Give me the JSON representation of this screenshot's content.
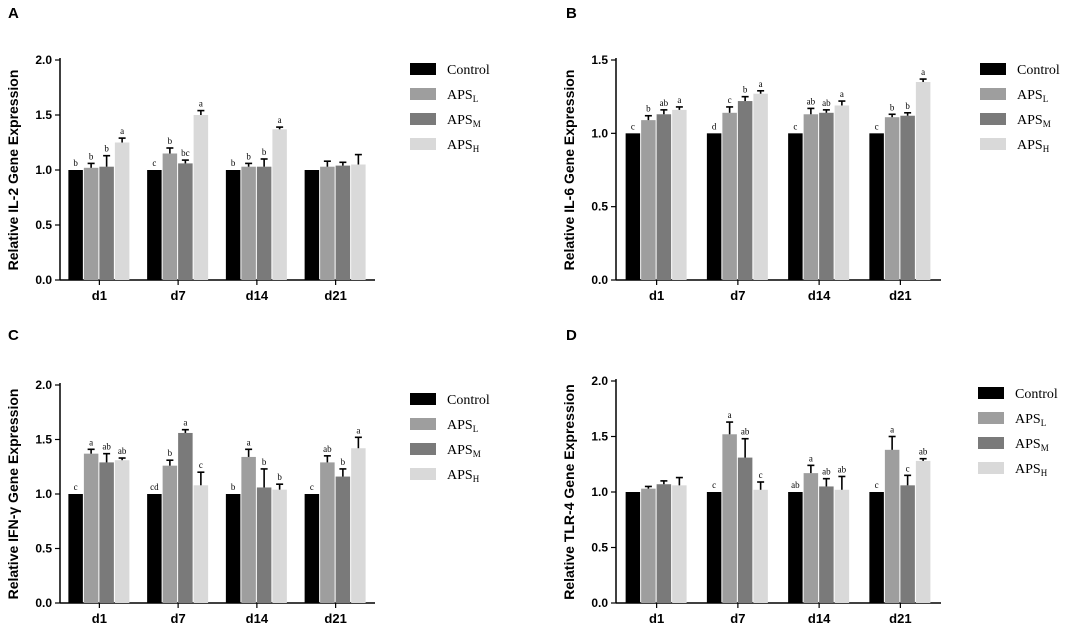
{
  "legend": [
    {
      "main": "Control",
      "sub": "",
      "color": "#000000"
    },
    {
      "main": "APS",
      "sub": "L",
      "color": "#9e9e9e"
    },
    {
      "main": "APS",
      "sub": "M",
      "color": "#7a7a7a"
    },
    {
      "main": "APS",
      "sub": "H",
      "color": "#d9d9d9"
    }
  ],
  "chart_data": [
    {
      "type": "bar",
      "panel": "A",
      "ylabel": "Relative IL-2  Gene Expression",
      "categories": [
        "d1",
        "d7",
        "d14",
        "d21"
      ],
      "ylim": [
        0,
        2.0
      ],
      "yticks": [
        "0.0",
        "0.5",
        "1.0",
        "1.5",
        "2.0"
      ],
      "ytick_values": [
        0,
        0.5,
        1.0,
        1.5,
        2.0
      ],
      "series": [
        {
          "name": "Control",
          "values": [
            1.0,
            1.0,
            1.0,
            1.0
          ],
          "errors": [
            0,
            0,
            0,
            0
          ],
          "labels": [
            "b",
            "c",
            "b",
            ""
          ]
        },
        {
          "name": "APS_L",
          "values": [
            1.02,
            1.15,
            1.03,
            1.03
          ],
          "errors": [
            0.04,
            0.05,
            0.03,
            0.05
          ],
          "labels": [
            "b",
            "b",
            "b",
            ""
          ]
        },
        {
          "name": "APS_M",
          "values": [
            1.03,
            1.06,
            1.03,
            1.04
          ],
          "errors": [
            0.1,
            0.03,
            0.07,
            0.03
          ],
          "labels": [
            "b",
            "bc",
            "b",
            ""
          ]
        },
        {
          "name": "APS_H",
          "values": [
            1.25,
            1.5,
            1.37,
            1.05
          ],
          "errors": [
            0.04,
            0.04,
            0.02,
            0.09
          ],
          "labels": [
            "a",
            "a",
            "a",
            ""
          ]
        }
      ]
    },
    {
      "type": "bar",
      "panel": "B",
      "ylabel": "Relative IL-6 Gene Expression",
      "categories": [
        "d1",
        "d7",
        "d14",
        "d21"
      ],
      "ylim": [
        0,
        1.5
      ],
      "yticks": [
        "0.0",
        "0.5",
        "1.0",
        "1.5"
      ],
      "ytick_values": [
        0,
        0.5,
        1.0,
        1.5
      ],
      "series": [
        {
          "name": "Control",
          "values": [
            1.0,
            1.0,
            1.0,
            1.0
          ],
          "errors": [
            0,
            0,
            0,
            0
          ],
          "labels": [
            "c",
            "d",
            "c",
            "c"
          ]
        },
        {
          "name": "APS_L",
          "values": [
            1.09,
            1.14,
            1.13,
            1.11
          ],
          "errors": [
            0.03,
            0.04,
            0.04,
            0.02
          ],
          "labels": [
            "b",
            "c",
            "ab",
            "b"
          ]
        },
        {
          "name": "APS_M",
          "values": [
            1.13,
            1.22,
            1.14,
            1.12
          ],
          "errors": [
            0.03,
            0.03,
            0.02,
            0.02
          ],
          "labels": [
            "ab",
            "b",
            "ab",
            "b"
          ]
        },
        {
          "name": "APS_H",
          "values": [
            1.16,
            1.27,
            1.19,
            1.35
          ],
          "errors": [
            0.02,
            0.02,
            0.03,
            0.02
          ],
          "labels": [
            "a",
            "a",
            "a",
            "a"
          ]
        }
      ]
    },
    {
      "type": "bar",
      "panel": "C",
      "ylabel": "Relative IFN-γ Gene Expression",
      "categories": [
        "d1",
        "d7",
        "d14",
        "d21"
      ],
      "ylim": [
        0,
        2.0
      ],
      "yticks": [
        "0.0",
        "0.5",
        "1.0",
        "1.5",
        "2.0"
      ],
      "ytick_values": [
        0,
        0.5,
        1.0,
        1.5,
        2.0
      ],
      "series": [
        {
          "name": "Control",
          "values": [
            1.0,
            1.0,
            1.0,
            1.0
          ],
          "errors": [
            0,
            0,
            0,
            0
          ],
          "labels": [
            "c",
            "cd",
            "b",
            "c"
          ]
        },
        {
          "name": "APS_L",
          "values": [
            1.37,
            1.26,
            1.34,
            1.29
          ],
          "errors": [
            0.04,
            0.05,
            0.07,
            0.06
          ],
          "labels": [
            "a",
            "b",
            "a",
            "ab"
          ]
        },
        {
          "name": "APS_M",
          "values": [
            1.29,
            1.56,
            1.06,
            1.16
          ],
          "errors": [
            0.08,
            0.03,
            0.17,
            0.07
          ],
          "labels": [
            "ab",
            "a",
            "b",
            "b"
          ]
        },
        {
          "name": "APS_H",
          "values": [
            1.31,
            1.08,
            1.04,
            1.42
          ],
          "errors": [
            0.02,
            0.12,
            0.05,
            0.1
          ],
          "labels": [
            "ab",
            "c",
            "b",
            "a"
          ]
        }
      ]
    },
    {
      "type": "bar",
      "panel": "D",
      "ylabel": "Relative TLR-4 Gene Expression",
      "categories": [
        "d1",
        "d7",
        "d14",
        "d21"
      ],
      "ylim": [
        0,
        2.0
      ],
      "yticks": [
        "0.0",
        "0.5",
        "1.0",
        "1.5",
        "2.0"
      ],
      "ytick_values": [
        0,
        0.5,
        1.0,
        1.5,
        2.0
      ],
      "series": [
        {
          "name": "Control",
          "values": [
            1.0,
            1.0,
            1.0,
            1.0
          ],
          "errors": [
            0,
            0,
            0,
            0
          ],
          "labels": [
            "",
            "c",
            "ab",
            "c"
          ]
        },
        {
          "name": "APS_L",
          "values": [
            1.03,
            1.52,
            1.17,
            1.38
          ],
          "errors": [
            0.02,
            0.11,
            0.07,
            0.12
          ],
          "labels": [
            "",
            "a",
            "a",
            "a"
          ]
        },
        {
          "name": "APS_M",
          "values": [
            1.07,
            1.31,
            1.05,
            1.06
          ],
          "errors": [
            0.03,
            0.17,
            0.07,
            0.09
          ],
          "labels": [
            "",
            "ab",
            "ab",
            "c"
          ]
        },
        {
          "name": "APS_H",
          "values": [
            1.06,
            1.02,
            1.02,
            1.28
          ],
          "errors": [
            0.07,
            0.07,
            0.12,
            0.02
          ],
          "labels": [
            "",
            "c",
            "ab",
            "ab"
          ]
        }
      ]
    }
  ]
}
